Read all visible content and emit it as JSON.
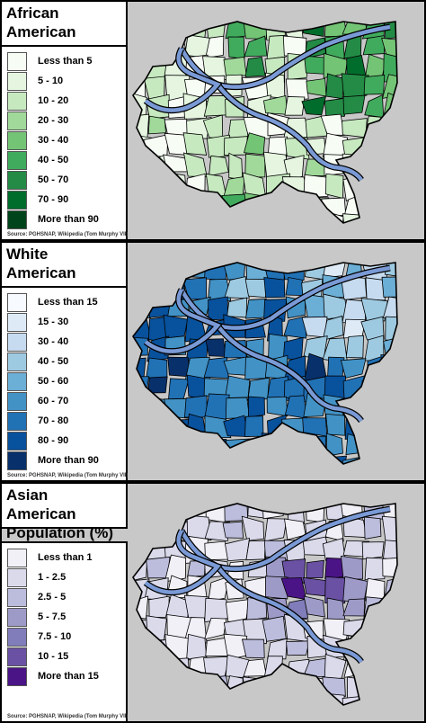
{
  "panels": [
    {
      "id": "african",
      "title": "African American\nPopulation (%)",
      "legend": [
        {
          "label": "Less than 5",
          "color": "#f7fcf5"
        },
        {
          "label": "5 - 10",
          "color": "#e5f5e0"
        },
        {
          "label": "10 - 20",
          "color": "#c7e9c0"
        },
        {
          "label": "20 - 30",
          "color": "#a1d99b"
        },
        {
          "label": "30 - 40",
          "color": "#74c476"
        },
        {
          "label": "40 - 50",
          "color": "#41ab5d"
        },
        {
          "label": "50 - 70",
          "color": "#238b45"
        },
        {
          "label": "70 - 90",
          "color": "#006d2c"
        },
        {
          "label": "More than 90",
          "color": "#00441b"
        }
      ],
      "source": "Source: PGHSNAP, Wikipedia (Tom Murphy VII)"
    },
    {
      "id": "white",
      "title": "White American\nPopulation (%)",
      "legend": [
        {
          "label": "Less than 15",
          "color": "#f7fbff"
        },
        {
          "label": "15 - 30",
          "color": "#deebf7"
        },
        {
          "label": "30 - 40",
          "color": "#c6dbef"
        },
        {
          "label": "40 - 50",
          "color": "#9ecae1"
        },
        {
          "label": "50 - 60",
          "color": "#6baed6"
        },
        {
          "label": "60 - 70",
          "color": "#4292c6"
        },
        {
          "label": "70 - 80",
          "color": "#2171b5"
        },
        {
          "label": "80 - 90",
          "color": "#08519c"
        },
        {
          "label": "More than 90",
          "color": "#08306b"
        }
      ],
      "source": "Source: PGHSNAP, Wikipedia (Tom Murphy VII)"
    },
    {
      "id": "asian",
      "title": "Asian American\nPopulation (%)",
      "legend": [
        {
          "label": "Less than 1",
          "color": "#f2f0f7"
        },
        {
          "label": "1 - 2.5",
          "color": "#dadaeb"
        },
        {
          "label": "2.5 - 5",
          "color": "#bcbddc"
        },
        {
          "label": "5 - 7.5",
          "color": "#9e9ac8"
        },
        {
          "label": "7.5 - 10",
          "color": "#807dba"
        },
        {
          "label": "10 - 15",
          "color": "#6a51a3"
        },
        {
          "label": "More than 15",
          "color": "#4a1486"
        }
      ],
      "source": "Source: PGHSNAP, Wikipedia (Tom Murphy VII)"
    }
  ],
  "colors": {
    "background": "#c8c8c8",
    "river": "#7a9ad6"
  }
}
